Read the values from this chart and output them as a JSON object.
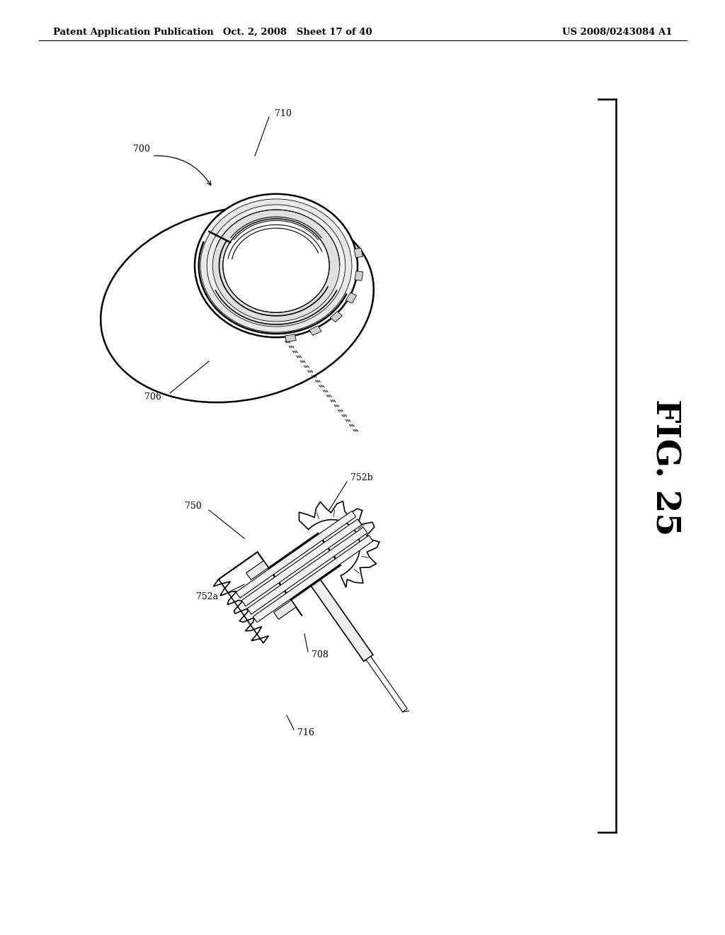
{
  "background_color": "#ffffff",
  "header_left": "Patent Application Publication",
  "header_center": "Oct. 2, 2008   Sheet 17 of 40",
  "header_right": "US 2008/0243084 A1",
  "fig_label": "FIG. 25",
  "page_width": 10.24,
  "page_height": 13.2,
  "dpi": 100
}
